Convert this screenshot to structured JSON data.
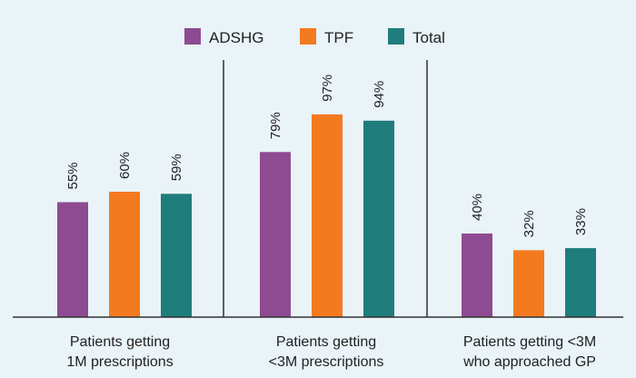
{
  "chart_data": {
    "type": "bar",
    "title": "",
    "xlabel": "",
    "ylabel": "",
    "ylim": [
      0,
      100
    ],
    "grid": false,
    "legend_position": "top-center",
    "categories": [
      [
        "Patients getting",
        "1M prescriptions"
      ],
      [
        "Patients getting",
        "<3M prescriptions"
      ],
      [
        "Patients getting <3M",
        "who approached GP"
      ]
    ],
    "series": [
      {
        "name": "ADSHG",
        "color": "#8e4b91",
        "values": [
          55,
          79,
          40
        ],
        "labels": [
          "55%",
          "79%",
          "40%"
        ]
      },
      {
        "name": "TPF",
        "color": "#f47a20",
        "values": [
          60,
          97,
          32
        ],
        "labels": [
          "60%",
          "97%",
          "32%"
        ]
      },
      {
        "name": "Total",
        "color": "#1f7d7b",
        "values": [
          59,
          94,
          33
        ],
        "labels": [
          "59%",
          "94%",
          "33%"
        ]
      }
    ]
  }
}
